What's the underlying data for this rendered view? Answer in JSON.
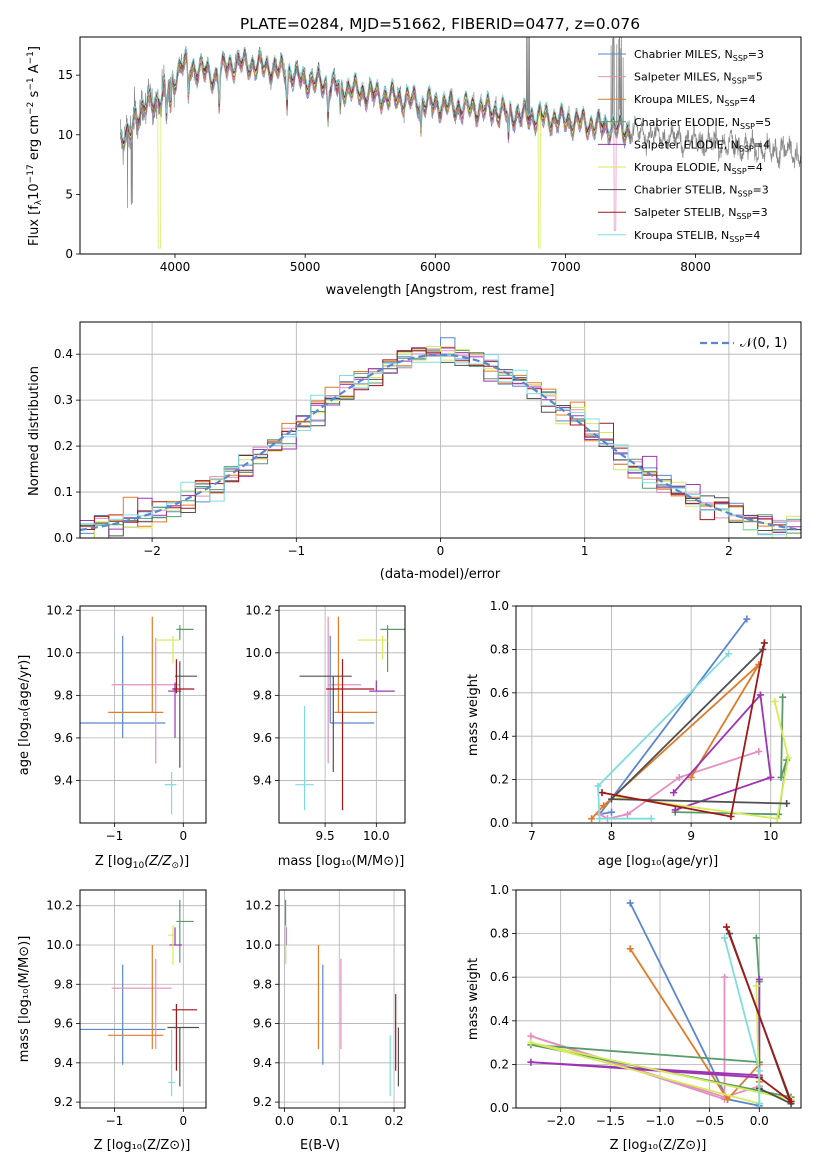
{
  "figure": {
    "title": "PLATE=0284, MJD=51662, FIBERID=0477, z=0.076"
  },
  "series_names": [
    "Chabrier MILES, N_SSP=3",
    "Salpeter MILES, N_SSP=5",
    "Kroupa MILES, N_SSP=4",
    "Chabrier ELODIE, N_SSP=5",
    "Salpeter ELODIE, N_SSP=4",
    "Kroupa ELODIE, N_SSP=4",
    "Chabrier STELIB, N_SSP=3",
    "Salpeter STELIB, N_SSP=3",
    "Kroupa STELIB, N_SSP=4"
  ],
  "colors": [
    "#5b86d0",
    "#e38fc0",
    "#e07b2a",
    "#5a9b6c",
    "#9d35b3",
    "#d6ea5a",
    "#505050",
    "#a01919",
    "#7fdde0"
  ],
  "spectrum": {
    "xlabel": "wavelength [Angstrom, rest frame]",
    "ylabel_text": "Flux [f",
    "ylabel_sub": "λ",
    "ylabel_rest": "10",
    "ylabel_sup1": "−17",
    "ylabel_rest2": " erg cm",
    "ylabel_sup2": "−2",
    "ylabel_rest3": " s",
    "ylabel_sup3": "−1",
    "ylabel_rest4": " A",
    "ylabel_sup4": "−1",
    "ylabel_end": "]",
    "xlim": [
      3270,
      8810
    ],
    "ylim": [
      0,
      18.2
    ],
    "xticks": [
      4000,
      5000,
      6000,
      7000,
      8000
    ],
    "yticks": [
      0,
      5,
      10,
      15
    ],
    "legend_main": [
      "Chabrier MILES, N",
      "Salpeter MILES, N",
      "Kroupa MILES, N",
      "Chabrier ELODIE, N",
      "Salpeter ELODIE, N",
      "Kroupa ELODIE, N",
      "Chabrier STELIB, N",
      "Salpeter STELIB, N",
      "Kroupa STELIB, N"
    ],
    "legend_sub": "SSP",
    "legend_counts": [
      "=3",
      "=5",
      "=4",
      "=5",
      "=4",
      "=4",
      "=3",
      "=3",
      "=4"
    ]
  },
  "histogram": {
    "xlabel": "(data-model)/error",
    "ylabel": "Normed distribution",
    "xlim": [
      -2.5,
      2.5
    ],
    "ylim": [
      0,
      0.47
    ],
    "xticks": [
      -2,
      -1,
      0,
      1,
      2
    ],
    "yticks": [
      0.0,
      0.1,
      0.2,
      0.3,
      0.4
    ],
    "legend_label": "𝒩(0, 1)",
    "bin_width": 0.1
  },
  "age_vs_Z": {
    "xlabel_a": "Z [log",
    "xlabel_sub": "10",
    "xlabel_b": "(Z/Z",
    "xlabel_sub2": "⊙",
    "xlabel_c": ")]",
    "ylabel": "age  [log₁₀(age/yr)]",
    "xlim": [
      -1.5,
      0.33
    ],
    "ylim": [
      9.2,
      10.22
    ],
    "xticks": [
      -1,
      0
    ],
    "yticks": [
      9.4,
      9.6,
      9.8,
      10.0,
      10.2
    ]
  },
  "age_vs_mass": {
    "xlabel": "mass [log₁₀(M/M⊙)]",
    "xlim": [
      9.05,
      10.28
    ],
    "ylim": [
      9.2,
      10.22
    ],
    "xticks": [
      9.5,
      10.0
    ],
    "yticks": [
      9.4,
      9.6,
      9.8,
      10.0,
      10.2
    ]
  },
  "weight_vs_age": {
    "xlabel": "age  [log₁₀(age/yr)]",
    "ylabel": "mass weight",
    "xlim": [
      6.8,
      10.38
    ],
    "ylim": [
      0,
      1.0
    ],
    "xticks": [
      7,
      8,
      9,
      10
    ],
    "yticks": [
      0.0,
      0.2,
      0.4,
      0.6,
      0.8,
      1.0
    ]
  },
  "mass_vs_Z": {
    "xlabel": "Z [log₁₀(Z/Z⊙)]",
    "ylabel": "mass [log₁₀(M/M⊙)]",
    "xlim": [
      -1.5,
      0.33
    ],
    "ylim": [
      9.17,
      10.28
    ],
    "xticks": [
      -1,
      0
    ],
    "yticks": [
      9.2,
      9.4,
      9.6,
      9.8,
      10.0,
      10.2
    ]
  },
  "mass_vs_ebv": {
    "xlabel": "E(B-V)",
    "xlim": [
      -0.01,
      0.22
    ],
    "ylim": [
      9.17,
      10.28
    ],
    "xticks": [
      0.0,
      0.1,
      0.2
    ],
    "yticks": [
      9.2,
      9.4,
      9.6,
      9.8,
      10.0,
      10.2
    ]
  },
  "weight_vs_Z": {
    "xlabel": "Z [log₁₀(Z/Z⊙)]",
    "ylabel": "mass weight",
    "xlim": [
      -2.45,
      0.42
    ],
    "ylim": [
      0,
      1.0
    ],
    "xticks": [
      -2.0,
      -1.5,
      -1.0,
      -0.5,
      0.0
    ],
    "yticks": [
      0.0,
      0.2,
      0.4,
      0.6,
      0.8,
      1.0
    ]
  },
  "chart_data": [
    {
      "type": "line",
      "title": "PLATE=0284, MJD=51662, FIBERID=0477, z=0.076",
      "xlabel": "wavelength [Angstrom, rest frame]",
      "ylabel": "Flux [fλ10⁻¹⁷ erg cm⁻² s⁻¹ A⁻¹]",
      "xlim": [
        3270,
        8810
      ],
      "ylim": [
        0,
        18.2
      ],
      "legend": "top-right",
      "continuum": {
        "x": [
          3580,
          3650,
          3700,
          3800,
          3900,
          4000,
          4050,
          4100,
          4200,
          4300,
          4400,
          4500,
          4700,
          4900,
          5000,
          5100,
          5300,
          5500,
          5800,
          6100,
          6400,
          6700,
          7000,
          7300,
          7600,
          7900,
          8200,
          8500,
          8800
        ],
        "y": [
          10.0,
          9.6,
          11.8,
          12.5,
          13.2,
          14.8,
          16.0,
          15.6,
          15.5,
          14.8,
          15.8,
          16.0,
          15.7,
          15.1,
          14.6,
          14.4,
          13.9,
          13.4,
          12.9,
          12.4,
          12.1,
          11.6,
          11.2,
          10.7,
          10.1,
          9.6,
          9.2,
          8.8,
          8.5
        ]
      }
    },
    {
      "type": "bar",
      "xlabel": "(data-model)/error",
      "ylabel": "Normed distribution",
      "xlim": [
        -2.5,
        2.5
      ],
      "ylim": [
        0,
        0.47
      ],
      "reference_curve": "𝒩(0, 1)",
      "legend": "top-right"
    },
    {
      "type": "scatter",
      "name": "age vs Z",
      "ylabel": "age  [log₁₀(age/yr)]",
      "xlabel": "Z [log₁₀(Z/Z⊙)]",
      "points": [
        {
          "x": -0.88,
          "xerr": [
            0.62,
            0.62
          ],
          "y": 9.67,
          "yerr": [
            0.07,
            0.41
          ]
        },
        {
          "x": -0.4,
          "xerr": [
            0.64,
            0.36
          ],
          "y": 9.85,
          "yerr": [
            0.37,
            0.22
          ]
        },
        {
          "x": -0.45,
          "xerr": [
            0.64,
            0.16
          ],
          "y": 9.72,
          "yerr": [
            0.0,
            0.45
          ]
        },
        {
          "x": -0.05,
          "xerr": [
            0.05,
            0.2
          ],
          "y": 10.11,
          "yerr": [
            0.05,
            0.02
          ]
        },
        {
          "x": -0.12,
          "xerr": [
            0.1,
            0.09
          ],
          "y": 9.82,
          "yerr": [
            0.22,
            0.04
          ]
        },
        {
          "x": -0.15,
          "xerr": [
            0.26,
            0.1
          ],
          "y": 10.06,
          "yerr": [
            0.11,
            0.02
          ]
        },
        {
          "x": -0.05,
          "xerr": [
            0.07,
            0.25
          ],
          "y": 9.89,
          "yerr": [
            0.43,
            0.07
          ]
        },
        {
          "x": -0.1,
          "xerr": [
            0.06,
            0.26
          ],
          "y": 9.83,
          "yerr": [
            0.02,
            0.14
          ]
        },
        {
          "x": -0.17,
          "xerr": [
            0.1,
            0.07
          ],
          "y": 9.38,
          "yerr": [
            0.14,
            0.06
          ]
        }
      ]
    },
    {
      "type": "scatter",
      "name": "age vs mass",
      "xlabel": "mass [log₁₀(M/M⊙)]",
      "points": [
        {
          "x": 9.55,
          "xerr": [
            0.0,
            0.43
          ],
          "y": 9.67,
          "yerr": [
            0.0,
            0.41
          ]
        },
        {
          "x": 9.53,
          "xerr": [
            0.0,
            0.32
          ],
          "y": 9.85,
          "yerr": [
            0.37,
            0.32
          ]
        },
        {
          "x": 9.63,
          "xerr": [
            0.04,
            0.38
          ],
          "y": 9.72,
          "yerr": [
            0.0,
            0.45
          ]
        },
        {
          "x": 10.11,
          "xerr": [
            0.07,
            0.23
          ],
          "y": 10.11,
          "yerr": [
            0.2,
            0.02
          ]
        },
        {
          "x": 10.0,
          "xerr": [
            0.07,
            0.18
          ],
          "y": 9.82,
          "yerr": [
            0.0,
            0.05
          ]
        },
        {
          "x": 10.06,
          "xerr": [
            0.24,
            0.05
          ],
          "y": 10.06,
          "yerr": [
            0.09,
            0.02
          ]
        },
        {
          "x": 9.58,
          "xerr": [
            0.33,
            0.18
          ],
          "y": 9.89,
          "yerr": [
            0.45,
            0.0
          ]
        },
        {
          "x": 9.67,
          "xerr": [
            0.16,
            0.31
          ],
          "y": 9.83,
          "yerr": [
            0.57,
            0.14
          ]
        },
        {
          "x": 9.3,
          "xerr": [
            0.09,
            0.09
          ],
          "y": 9.38,
          "yerr": [
            0.12,
            0.37
          ]
        }
      ]
    },
    {
      "type": "line",
      "name": "mass weight vs age",
      "xlabel": "age  [log₁₀(age/yr)]",
      "ylabel": "mass weight",
      "xlim": [
        6.8,
        10.38
      ],
      "ylim": [
        0,
        1.0
      ],
      "series": [
        {
          "name": "Chabrier MILES, N_SSP=3",
          "x": [
            9.7,
            7.85,
            8.0
          ],
          "y": [
            0.94,
            0.04,
            0.05
          ]
        },
        {
          "name": "Salpeter MILES, N_SSP=5",
          "x": [
            9.85,
            8.85,
            8.2,
            7.95,
            7.85
          ],
          "y": [
            0.33,
            0.21,
            0.04,
            0.02,
            0.04
          ]
        },
        {
          "name": "Kroupa MILES, N_SSP=4",
          "x": [
            7.75,
            7.9,
            9.85,
            9.0
          ],
          "y": [
            0.02,
            0.08,
            0.73,
            0.21
          ]
        },
        {
          "name": "Chabrier ELODIE, N_SSP=5",
          "x": [
            10.15,
            10.13,
            10.2,
            10.1,
            8.8
          ],
          "y": [
            0.58,
            0.21,
            0.29,
            0.04,
            0.05
          ]
        },
        {
          "name": "Salpeter ELODIE, N_SSP=4",
          "x": [
            8.78,
            9.87,
            10.0,
            8.8
          ],
          "y": [
            0.14,
            0.59,
            0.21,
            0.06
          ]
        },
        {
          "name": "Kroupa ELODIE, N_SSP=4",
          "x": [
            10.05,
            10.22,
            10.08,
            8.1
          ],
          "y": [
            0.56,
            0.3,
            0.02,
            0.12
          ]
        },
        {
          "name": "Chabrier STELIB, N_SSP=3",
          "x": [
            9.9,
            8.0,
            10.2
          ],
          "y": [
            0.8,
            0.11,
            0.09
          ]
        },
        {
          "name": "Salpeter STELIB, N_SSP=3",
          "x": [
            9.92,
            9.5,
            7.88
          ],
          "y": [
            0.83,
            0.03,
            0.14
          ]
        },
        {
          "name": "Kroupa STELIB, N_SSP=4",
          "x": [
            9.47,
            7.83,
            7.85,
            8.5
          ],
          "y": [
            0.78,
            0.17,
            0.02,
            0.02
          ]
        }
      ]
    },
    {
      "type": "scatter",
      "name": "mass vs Z",
      "ylabel": "mass [log₁₀(M/M⊙)]",
      "xlabel": "Z [log₁₀(Z/Z⊙)]",
      "points": [
        {
          "x": -0.88,
          "xerr": [
            0.62,
            0.62
          ],
          "y": 9.57,
          "yerr": [
            0.18,
            0.33
          ]
        },
        {
          "x": -0.4,
          "xerr": [
            0.64,
            0.23
          ],
          "y": 9.78,
          "yerr": [
            0.31,
            0.15
          ]
        },
        {
          "x": -0.45,
          "xerr": [
            0.64,
            0.16
          ],
          "y": 9.54,
          "yerr": [
            0.07,
            0.46
          ]
        },
        {
          "x": -0.05,
          "xerr": [
            0.05,
            0.2
          ],
          "y": 10.12,
          "yerr": [
            0.21,
            0.11
          ]
        },
        {
          "x": -0.12,
          "xerr": [
            0.08,
            0.1
          ],
          "y": 10.0,
          "yerr": [
            0.0,
            0.09
          ]
        },
        {
          "x": -0.15,
          "xerr": [
            0.07,
            0.02
          ],
          "y": 10.05,
          "yerr": [
            0.15,
            0.05
          ]
        },
        {
          "x": -0.05,
          "xerr": [
            0.18,
            0.28
          ],
          "y": 9.58,
          "yerr": [
            0.3,
            0.0
          ]
        },
        {
          "x": -0.1,
          "xerr": [
            0.06,
            0.3
          ],
          "y": 9.67,
          "yerr": [
            0.31,
            0.03
          ]
        },
        {
          "x": -0.17,
          "xerr": [
            0.05,
            0.05
          ],
          "y": 9.3,
          "yerr": [
            0.07,
            0.27
          ]
        }
      ]
    },
    {
      "type": "scatter",
      "name": "mass vs E(B-V)",
      "xlabel": "E(B-V)",
      "points": [
        {
          "x": 0.07,
          "y": 9.57,
          "yerr": [
            0.18,
            0.33
          ]
        },
        {
          "x": 0.103,
          "y": 9.78,
          "yerr": [
            0.31,
            0.15
          ]
        },
        {
          "x": 0.062,
          "y": 9.54,
          "yerr": [
            0.07,
            0.46
          ]
        },
        {
          "x": 0.002,
          "y": 10.12,
          "yerr": [
            0.21,
            0.11
          ]
        },
        {
          "x": 0.003,
          "y": 10.0,
          "yerr": [
            0.0,
            0.09
          ]
        },
        {
          "x": 0.002,
          "y": 10.05,
          "yerr": [
            0.15,
            0.05
          ]
        },
        {
          "x": 0.208,
          "y": 9.58,
          "yerr": [
            0.3,
            0.0
          ]
        },
        {
          "x": 0.203,
          "y": 9.67,
          "yerr": [
            0.31,
            0.08
          ]
        },
        {
          "x": 0.193,
          "y": 9.3,
          "yerr": [
            0.07,
            0.24
          ]
        }
      ]
    },
    {
      "type": "line",
      "name": "mass weight vs Z",
      "xlabel": "Z [log₁₀(Z/Z⊙)]",
      "ylabel": "mass weight",
      "xlim": [
        -2.45,
        0.42
      ],
      "ylim": [
        0,
        1.0
      ],
      "series": [
        {
          "name": "Chabrier MILES, N_SSP=3",
          "x": [
            -1.3,
            -0.32,
            0.0
          ],
          "y": [
            0.94,
            0.04,
            0.01
          ]
        },
        {
          "name": "Salpeter MILES, N_SSP=5",
          "x": [
            -0.35,
            -0.35,
            -2.3,
            -0.35,
            0.0
          ],
          "y": [
            0.6,
            0.04,
            0.33,
            0.05,
            0.1
          ]
        },
        {
          "name": "Kroupa MILES, N_SSP=4",
          "x": [
            -1.3,
            -0.32,
            0.0,
            0.0
          ],
          "y": [
            0.73,
            0.04,
            0.2,
            0.12
          ]
        },
        {
          "name": "Chabrier ELODIE, N_SSP=5",
          "x": [
            -0.03,
            0.0,
            0.0,
            -2.3,
            0.32
          ],
          "y": [
            0.78,
            0.58,
            0.21,
            0.29,
            0.05
          ]
        },
        {
          "name": "Salpeter ELODIE, N_SSP=4",
          "x": [
            0.0,
            0.0,
            -2.3,
            0.0
          ],
          "y": [
            0.59,
            0.14,
            0.21,
            0.15
          ]
        },
        {
          "name": "Kroupa ELODIE, N_SSP=4",
          "x": [
            -0.03,
            0.0,
            -2.3,
            0.32
          ],
          "y": [
            0.56,
            0.02,
            0.3,
            0.04
          ]
        },
        {
          "name": "Chabrier STELIB, N_SSP=3",
          "x": [
            -0.3,
            0.32,
            0.0
          ],
          "y": [
            0.8,
            0.02,
            0.09
          ]
        },
        {
          "name": "Salpeter STELIB, N_SSP=3",
          "x": [
            -0.33,
            0.32,
            0.0
          ],
          "y": [
            0.83,
            0.03,
            0.14
          ]
        },
        {
          "name": "Kroupa STELIB, N_SSP=4",
          "x": [
            -0.35,
            0.0,
            0.0,
            0.0
          ],
          "y": [
            0.78,
            0.17,
            0.02,
            0.02
          ]
        }
      ]
    }
  ]
}
